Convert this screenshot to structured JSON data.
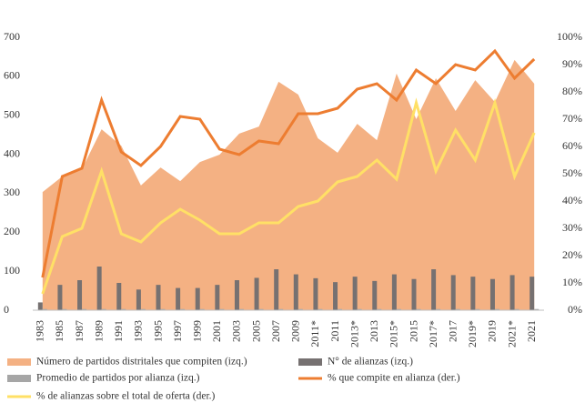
{
  "chart_data": {
    "type": "combo",
    "categories": [
      "1983",
      "1985",
      "1987",
      "1989",
      "1991",
      "1993",
      "1995",
      "1997",
      "1999",
      "2001",
      "2003",
      "2005",
      "2007",
      "2009",
      "2011*",
      "2011",
      "2013*",
      "2013",
      "2015*",
      "2015",
      "2017*",
      "2017",
      "2019*",
      "2019",
      "2021*",
      "2021"
    ],
    "ylim": [
      0,
      700
    ],
    "yticks": [
      0,
      100,
      200,
      300,
      400,
      500,
      600,
      700
    ],
    "y2lim": [
      0,
      100
    ],
    "y2ticks": [
      {
        "value": 0,
        "label": "0%"
      },
      {
        "value": 10,
        "label": "10%"
      },
      {
        "value": 20,
        "label": "20%"
      },
      {
        "value": 30,
        "label": "30%"
      },
      {
        "value": 40,
        "label": "40%"
      },
      {
        "value": 50,
        "label": "50%"
      },
      {
        "value": 60,
        "label": "60%"
      },
      {
        "value": 70,
        "label": "70%"
      },
      {
        "value": 80,
        "label": "80%"
      },
      {
        "value": 90,
        "label": "90%"
      },
      {
        "value": 100,
        "label": "100%"
      }
    ],
    "series": [
      {
        "name": "Número de partidos distritales que compiten (izq.)",
        "type": "area",
        "color": "#f4b183",
        "values": [
          303,
          343,
          362,
          464,
          422,
          320,
          366,
          331,
          380,
          399,
          453,
          471,
          586,
          553,
          441,
          404,
          478,
          436,
          607,
          490,
          595,
          511,
          590,
          534,
          642,
          581
        ]
      },
      {
        "name": "N° de alianzas (izq.)",
        "type": "bar",
        "color": "#767171",
        "values": [
          20,
          65,
          77,
          112,
          70,
          53,
          65,
          57,
          57,
          65,
          77,
          83,
          105,
          92,
          82,
          72,
          86,
          75,
          92,
          80,
          105,
          90,
          86,
          80,
          90,
          86
        ]
      },
      {
        "name": "Promedio de partidos por alianza (izq.)",
        "type": "bar",
        "color": "#a6a6a6",
        "values": [
          3,
          3,
          3,
          3,
          3,
          3,
          3,
          3,
          3,
          3,
          3,
          3,
          3,
          3,
          3,
          3,
          3,
          3,
          3,
          3,
          3,
          3,
          3,
          3,
          3,
          3
        ]
      },
      {
        "name": "% que compite en alianza (der.)",
        "type": "line",
        "axis": "y2",
        "color": "#ed7d31",
        "values": [
          12,
          49,
          52,
          77,
          58,
          53,
          60,
          71,
          70,
          59,
          57,
          62,
          61,
          72,
          72,
          74,
          81,
          83,
          77,
          88,
          83,
          90,
          88,
          95,
          85,
          92
        ]
      },
      {
        "name": "% de alianzas sobre el total de oferta (der.)",
        "type": "line",
        "axis": "y2",
        "color": "#ffe066",
        "values": [
          6,
          27,
          30,
          51,
          28,
          25,
          32,
          37,
          33,
          28,
          28,
          32,
          32,
          38,
          40,
          47,
          49,
          55,
          48,
          76,
          51,
          66,
          55,
          76,
          49,
          65
        ]
      }
    ]
  }
}
